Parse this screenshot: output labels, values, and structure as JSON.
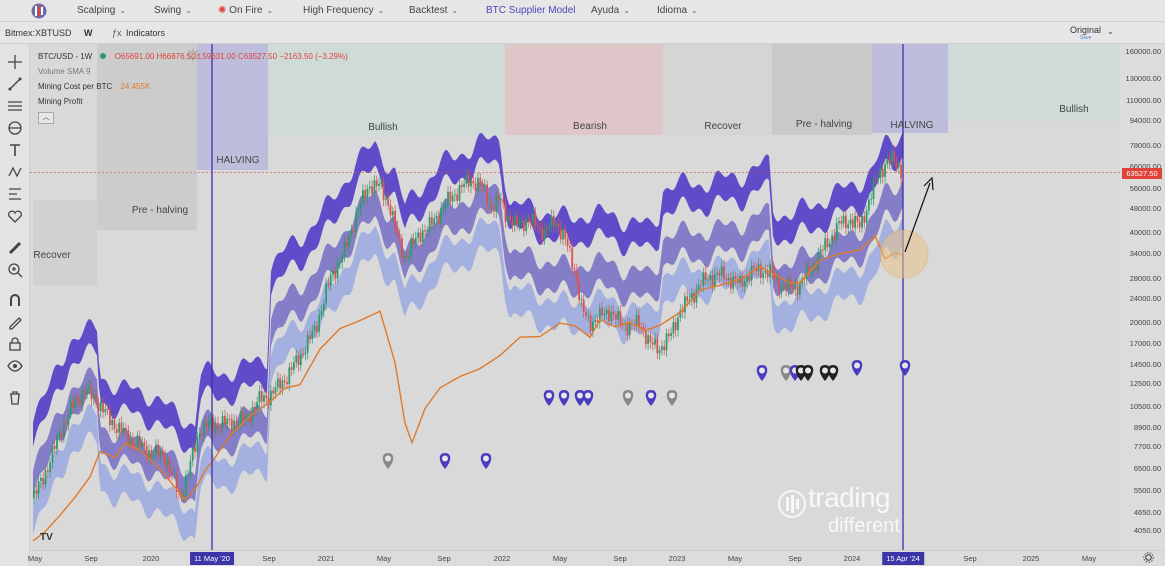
{
  "nav": {
    "items": [
      {
        "label": "Scalping",
        "x": 77
      },
      {
        "label": "Swing",
        "x": 154
      },
      {
        "label": "On Fire",
        "x": 232
      },
      {
        "label": "High Frequency",
        "x": 303
      },
      {
        "label": "Backtest",
        "x": 409
      },
      {
        "label": "BTC Supplier Model",
        "x": 486
      },
      {
        "label": "Ayuda",
        "x": 591
      },
      {
        "label": "Idioma",
        "x": 657
      }
    ]
  },
  "toolbar": {
    "symbol": "Bitmex:XBTUSD",
    "interval": "W",
    "indicators": "Indicators",
    "original": "Original",
    "original_sub": "Save"
  },
  "legend": {
    "title": "BTC/USD - 1W",
    "ohlc": "O65691.00 H66876.50 L59631.00 C63527.50 −2163.50 (−3.29%)",
    "volume": "Volume SMA 9",
    "mining_cost_label": "Mining Cost per BTC",
    "mining_cost_value": "24.455K",
    "mining_profit": "Mining Profit"
  },
  "price_tag": "63527.50",
  "chart_data": {
    "type": "line",
    "title": "BTC/USD - 1W",
    "ylim": [
      3500,
      170000
    ],
    "yscale": "log",
    "y_ticks": [
      "160000.00",
      "130000.00",
      "110000.00",
      "94000.00",
      "78000.00",
      "66000.00",
      "56000.00",
      "48000.00",
      "40000.00",
      "34000.00",
      "28000.00",
      "24000.00",
      "20000.00",
      "17000.00",
      "14500.00",
      "12500.00",
      "10500.00",
      "8900.00",
      "7700.00",
      "6500.00",
      "5500.00",
      "4650.00",
      "4050.00"
    ],
    "x_ticks": [
      "May",
      "Sep",
      "2020",
      "11 May '20",
      "Sep",
      "2021",
      "May",
      "Sep",
      "2022",
      "May",
      "Sep",
      "2023",
      "May",
      "15 Apr '24",
      "Sep",
      "2024",
      "Sep",
      "2025",
      "May"
    ],
    "phases": [
      {
        "label": "Recover"
      },
      {
        "label": "Pre - halving"
      },
      {
        "label": "HALVING"
      },
      {
        "label": "Bullish"
      },
      {
        "label": "Bearish"
      },
      {
        "label": "Recover"
      },
      {
        "label": "Pre - halving"
      },
      {
        "label": "HALVING"
      },
      {
        "label": "Bullish"
      }
    ],
    "series": [
      {
        "name": "Mining Cost per BTC",
        "color": "#e07a2a"
      },
      {
        "color": "#5a44c8"
      },
      {
        "color": "#7a72c4"
      },
      {
        "color": "#9aa9e0"
      }
    ],
    "halvings": [
      "11 May '20",
      "15 Apr '24"
    ],
    "last_price": 63527.5
  },
  "watermark": {
    "line1": "trading",
    "line2": "different"
  },
  "colors": {
    "band_dark": "#5438c8",
    "band_mid": "#7b77c6",
    "band_light": "#a7bce8",
    "cost": "#e07a2a",
    "halving": "#3a2fb0",
    "up": "#2e9a6e",
    "down": "#d9534f"
  }
}
